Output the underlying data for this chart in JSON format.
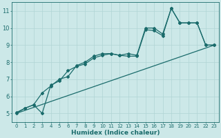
{
  "xlabel": "Humidex (Indice chaleur)",
  "bg_color": "#cce8e8",
  "grid_color": "#b0d4d4",
  "line_color": "#1a6b6b",
  "xlim": [
    -0.5,
    23.5
  ],
  "ylim": [
    4.5,
    11.5
  ],
  "xticks": [
    0,
    1,
    2,
    3,
    4,
    5,
    6,
    7,
    8,
    9,
    10,
    11,
    12,
    13,
    14,
    15,
    16,
    17,
    18,
    19,
    20,
    21,
    22,
    23
  ],
  "yticks": [
    5,
    6,
    7,
    8,
    9,
    10,
    11
  ],
  "series1_x": [
    0,
    1,
    2,
    3,
    4,
    5,
    6,
    7,
    8,
    9,
    10,
    11,
    12,
    13,
    14,
    15,
    16,
    17,
    18,
    19,
    20,
    21,
    22,
    23
  ],
  "series1_y": [
    5.0,
    5.3,
    5.5,
    6.2,
    6.6,
    7.0,
    7.15,
    7.8,
    8.0,
    8.35,
    8.5,
    8.5,
    8.4,
    8.5,
    8.4,
    10.0,
    10.0,
    9.65,
    11.15,
    10.3,
    10.3,
    10.3,
    9.0,
    9.0
  ],
  "series2_x": [
    0,
    1,
    2,
    3,
    4,
    5,
    6,
    7,
    8,
    9,
    10,
    11,
    12,
    13,
    14,
    15,
    16,
    17,
    18,
    19,
    20,
    21,
    22,
    23
  ],
  "series2_y": [
    5.05,
    5.3,
    5.5,
    5.0,
    6.65,
    6.9,
    7.5,
    7.75,
    7.9,
    8.25,
    8.4,
    8.5,
    8.4,
    8.35,
    8.35,
    9.9,
    9.85,
    9.55,
    11.15,
    10.3,
    10.3,
    10.3,
    9.0,
    9.0
  ],
  "series3_x": [
    0,
    23
  ],
  "series3_y": [
    5.0,
    9.0
  ]
}
